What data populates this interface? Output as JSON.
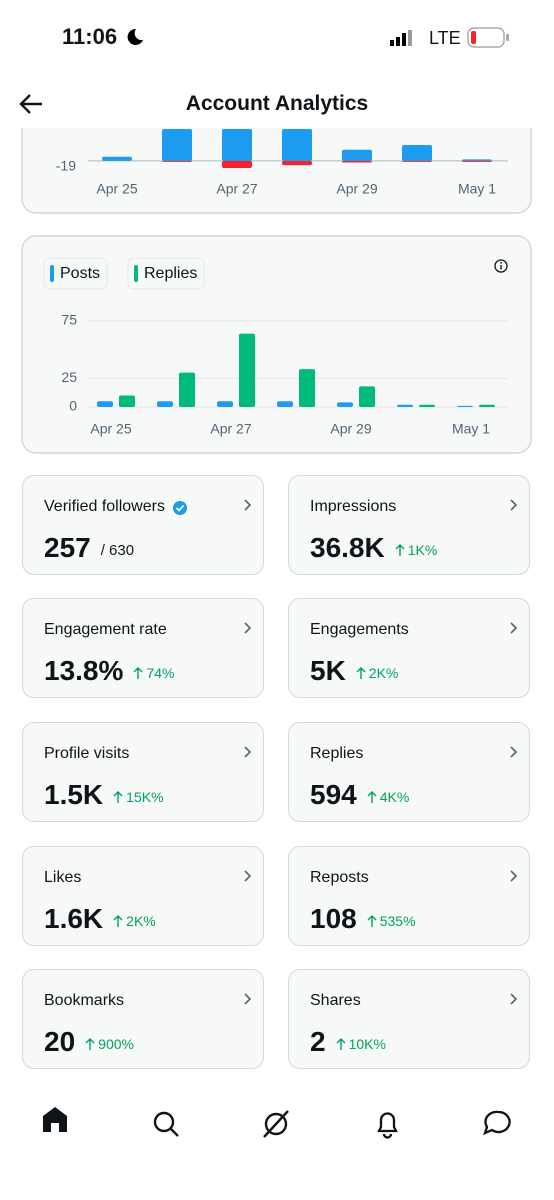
{
  "status": {
    "time": "11:06",
    "network": "LTE"
  },
  "header": {
    "title": "Account Analytics"
  },
  "chart_data": [
    {
      "type": "bar",
      "categories": [
        "Apr 25",
        null,
        "Apr 27",
        null,
        "Apr 29",
        null,
        "May 1"
      ],
      "series": [
        {
          "color": "#1d9bf0",
          "values": [
            13,
            100,
            100,
            100,
            35,
            50,
            5
          ]
        },
        {
          "color": "#f4212e",
          "values": [
            0,
            -3,
            -22,
            -13,
            -5,
            -3,
            -3
          ]
        }
      ],
      "ylim": [
        -19,
        100
      ],
      "yticks": [
        -19
      ]
    },
    {
      "type": "bar",
      "categories": [
        "Apr 25",
        null,
        "Apr 27",
        null,
        "Apr 29",
        null,
        "May 1"
      ],
      "series": [
        {
          "name": "Posts",
          "color": "#1d9bf0",
          "values": [
            5,
            5,
            5,
            5,
            4,
            2,
            1
          ]
        },
        {
          "name": "Replies",
          "color": "#00ba7c",
          "values": [
            10,
            30,
            64,
            33,
            18,
            2,
            2
          ]
        }
      ],
      "ylim": [
        0,
        75
      ],
      "yticks": [
        0,
        25,
        75
      ],
      "grid": true
    }
  ],
  "cards": [
    {
      "label": "Verified followers",
      "value": "257",
      "total": "/ 630"
    },
    {
      "label": "Impressions",
      "value": "36.8K",
      "change": "1K%"
    },
    {
      "label": "Engagement rate",
      "value": "13.8%",
      "change": "74%"
    },
    {
      "label": "Engagements",
      "value": "5K",
      "change": "2K%"
    },
    {
      "label": "Profile visits",
      "value": "1.5K",
      "change": "15K%"
    },
    {
      "label": "Replies",
      "value": "594",
      "change": "4K%"
    },
    {
      "label": "Likes",
      "value": "1.6K",
      "change": "2K%"
    },
    {
      "label": "Reposts",
      "value": "108",
      "change": "535%"
    },
    {
      "label": "Bookmarks",
      "value": "20",
      "change": "900%"
    },
    {
      "label": "Shares",
      "value": "2",
      "change": "10K%"
    }
  ]
}
